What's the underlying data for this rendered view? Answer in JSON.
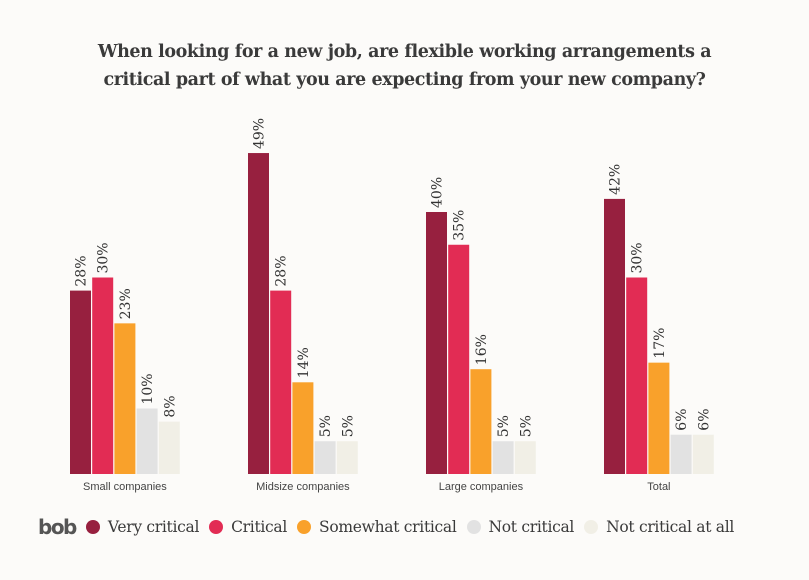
{
  "chart_data": {
    "type": "bar",
    "title": "When looking for a new job, are flexible working arrangements a critical part of what you are expecting from your new company?",
    "title_lines": [
      "When looking for a new job, are flexible working arrangements a",
      "critical part of what you are expecting from your new company?"
    ],
    "categories": [
      "Small companies",
      "Midsize companies",
      "Large companies",
      "Total"
    ],
    "series": [
      {
        "name": "Very critical",
        "color": "#97203f",
        "values": [
          28,
          49,
          40,
          42
        ]
      },
      {
        "name": "Critical",
        "color": "#e22c54",
        "values": [
          30,
          28,
          35,
          30
        ]
      },
      {
        "name": "Somewhat critical",
        "color": "#f9a12b",
        "values": [
          23,
          14,
          16,
          17
        ]
      },
      {
        "name": "Not critical",
        "color": "#e2e2e2",
        "values": [
          10,
          5,
          5,
          6
        ]
      },
      {
        "name": "Not critical at all",
        "color": "#f1efe6",
        "values": [
          8,
          5,
          5,
          6
        ]
      }
    ],
    "value_suffix": "%",
    "xlabel": "",
    "ylabel": "",
    "ylim": [
      0,
      50
    ],
    "grid": false,
    "legend_position": "bottom-left"
  },
  "brand": {
    "logo_text": "bob"
  }
}
